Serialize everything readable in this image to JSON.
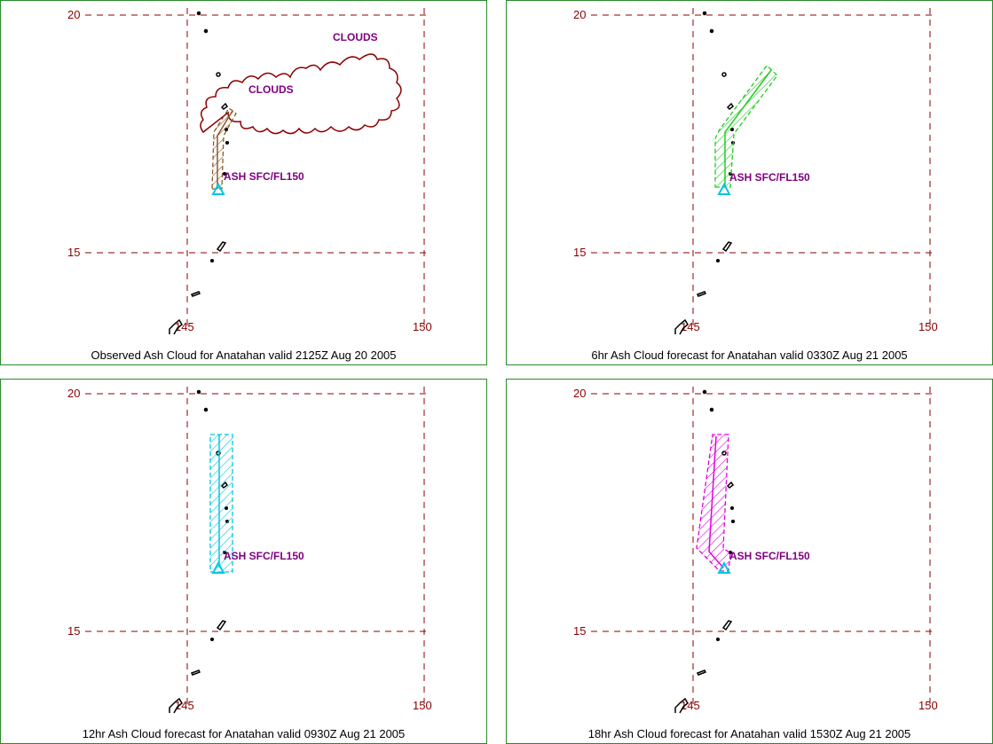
{
  "grid": {
    "lat_labels": [
      "20",
      "15"
    ],
    "lon_labels": [
      "145",
      "150"
    ]
  },
  "colors": {
    "grid": "#8b0000",
    "land": "#000000",
    "clouds": "#8b0000",
    "observed": "#8b5a2b",
    "forecast6": "#22cc22",
    "forecast12": "#00c8e0",
    "forecast18": "#e000e0",
    "volcano": "#00c8e0",
    "label": "#800080",
    "frame": "#2a8a2a"
  },
  "panels": [
    {
      "caption": "Observed Ash Cloud for Anatahan valid 2125Z Aug 20 2005",
      "ash_label": "ASH SFC/FL150",
      "cloud_labels": [
        "CLOUDS",
        "CLOUDS"
      ],
      "color_key": "observed"
    },
    {
      "caption": "6hr Ash Cloud forecast for Anatahan valid 0330Z Aug 21 2005",
      "ash_label": "ASH SFC/FL150",
      "color_key": "forecast6"
    },
    {
      "caption": "12hr Ash Cloud forecast for Anatahan valid 0930Z Aug 21 2005",
      "ash_label": "ASH SFC/FL150",
      "color_key": "forecast12"
    },
    {
      "caption": "18hr Ash Cloud forecast for Anatahan valid 1530Z Aug 21 2005",
      "ash_label": "ASH SFC/FL150",
      "color_key": "forecast18"
    }
  ]
}
